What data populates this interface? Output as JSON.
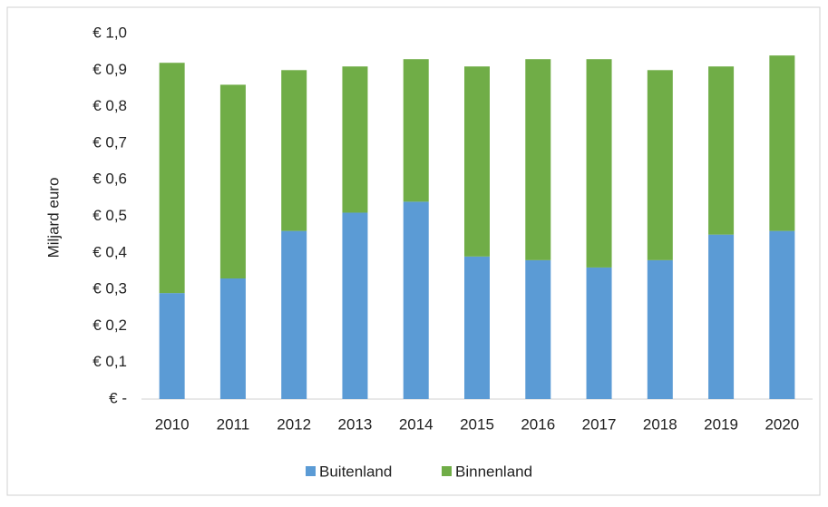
{
  "chart_data": {
    "type": "bar",
    "stacked": true,
    "y_label": "Miljard euro",
    "categories": [
      "2010",
      "2011",
      "2012",
      "2013",
      "2014",
      "2015",
      "2016",
      "2017",
      "2018",
      "2019",
      "2020"
    ],
    "series": [
      {
        "name": "Buitenland",
        "color": "#5b9bd5",
        "values": [
          0.29,
          0.33,
          0.46,
          0.51,
          0.54,
          0.39,
          0.38,
          0.36,
          0.38,
          0.45,
          0.46
        ]
      },
      {
        "name": "Binnenland",
        "color": "#70ad47",
        "values": [
          0.63,
          0.53,
          0.44,
          0.4,
          0.39,
          0.52,
          0.55,
          0.57,
          0.52,
          0.46,
          0.48
        ]
      }
    ],
    "ylim": [
      0,
      1.0
    ],
    "yticks": [
      {
        "value": 0,
        "label": "€ -"
      },
      {
        "value": 0.1,
        "label": "€ 0,1"
      },
      {
        "value": 0.2,
        "label": "€ 0,2"
      },
      {
        "value": 0.3,
        "label": "€ 0,3"
      },
      {
        "value": 0.4,
        "label": "€ 0,4"
      },
      {
        "value": 0.5,
        "label": "€ 0,5"
      },
      {
        "value": 0.6,
        "label": "€ 0,6"
      },
      {
        "value": 0.7,
        "label": "€ 0,7"
      },
      {
        "value": 0.8,
        "label": "€ 0,8"
      },
      {
        "value": 0.9,
        "label": "€ 0,9"
      },
      {
        "value": 1.0,
        "label": "€ 1,0"
      }
    ],
    "grid": false,
    "legend": "bottom"
  }
}
